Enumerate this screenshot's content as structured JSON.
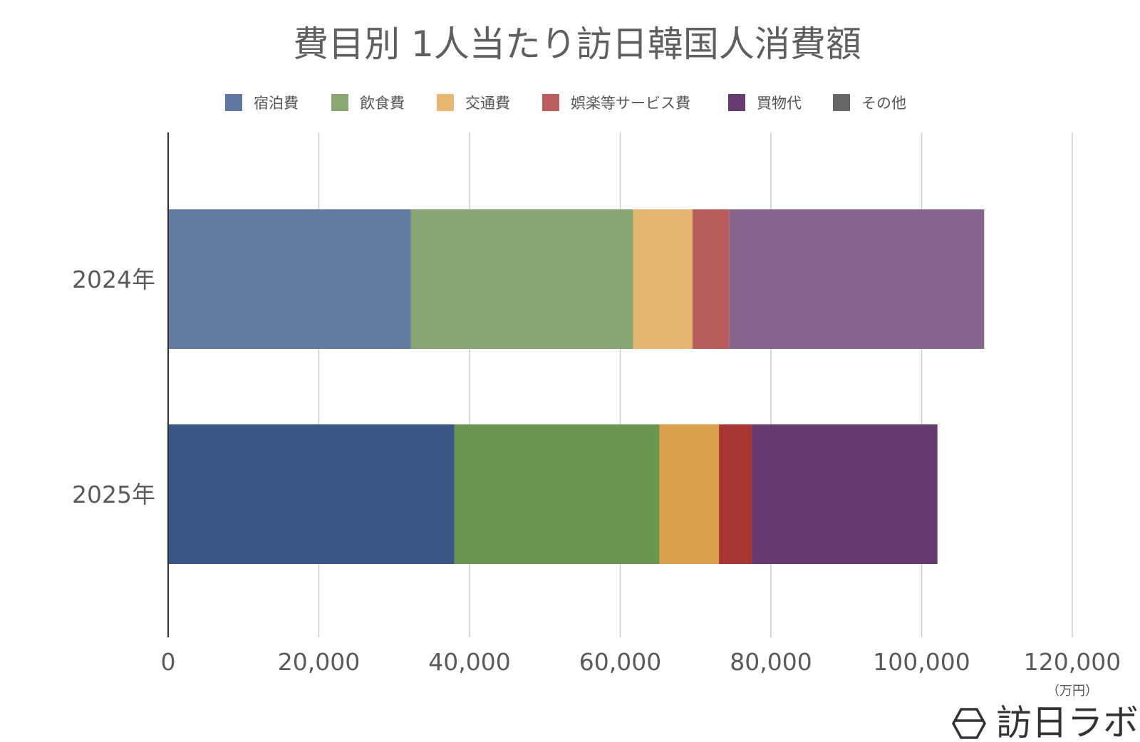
{
  "chart_data": {
    "type": "bar",
    "orientation": "horizontal",
    "stacked": true,
    "title": "費目別 1人当たり訪日韓国人消費額",
    "categories": [
      "2024年",
      "2025年"
    ],
    "series": [
      {
        "name": "宿泊費",
        "values": [
          32200,
          38000
        ],
        "colors": [
          "#6279a0",
          "#3a5887"
        ]
      },
      {
        "name": "飲食費",
        "values": [
          29500,
          27200
        ],
        "colors": [
          "#88a873",
          "#6a9650"
        ]
      },
      {
        "name": "交通費",
        "values": [
          7900,
          7900
        ],
        "colors": [
          "#e5b672",
          "#dca14d"
        ]
      },
      {
        "name": "娯楽等サービス費",
        "values": [
          4900,
          4400
        ],
        "colors": [
          "#b95d5c",
          "#a83734"
        ]
      },
      {
        "name": "買物代",
        "values": [
          33800,
          24600
        ],
        "colors": [
          "#86658e",
          "#673b72"
        ]
      },
      {
        "name": "その他",
        "values": [
          0,
          0
        ],
        "colors": [
          "#666666",
          "#666666"
        ]
      }
    ],
    "legend_colors": [
      "#5f78a0",
      "#89a874",
      "#e8b873",
      "#bb5e5d",
      "#683b72",
      "#666666"
    ],
    "xlim": [
      0,
      120000
    ],
    "x_ticks": [
      "0",
      "20,000",
      "40,000",
      "60,000",
      "80,000",
      "100,000",
      "120,000"
    ],
    "unit": "（万円）",
    "grid": true,
    "legend_position": "top"
  },
  "watermark": {
    "text": "訪日ラボ",
    "icon": "hexagon-logo-icon"
  }
}
